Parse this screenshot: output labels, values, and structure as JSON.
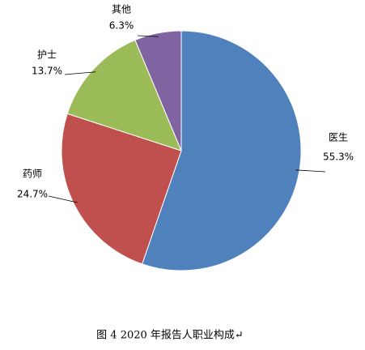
{
  "chart_data": {
    "type": "pie",
    "categories": [
      "医生",
      "药师",
      "护士",
      "其他"
    ],
    "values": [
      55.3,
      24.7,
      13.7,
      6.3
    ],
    "value_labels": [
      "55.3%",
      "24.7%",
      "13.7%",
      "6.3%"
    ],
    "colors": [
      "#4f81bd",
      "#c0504d",
      "#9bbb59",
      "#8064a2"
    ],
    "caption": "图 4   2020 年报告人职业构成↵"
  }
}
